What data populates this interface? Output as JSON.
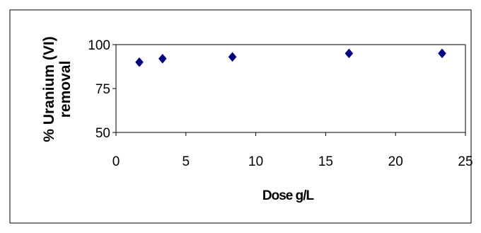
{
  "chart_data": {
    "type": "scatter",
    "title": "",
    "xlabel": "Dose g/L",
    "ylabel_lines": [
      "% Uranium (VI)",
      "removal"
    ],
    "xlim": [
      0,
      25
    ],
    "ylim": [
      50,
      100
    ],
    "x_ticks": [
      "0",
      "5",
      "10",
      "15",
      "20",
      "25"
    ],
    "y_ticks": [
      "50",
      "75",
      "100"
    ],
    "grid": false,
    "legend": "none",
    "marker": "diamond",
    "marker_color": "#000080",
    "points": [
      {
        "x": 1.67,
        "y": 90
      },
      {
        "x": 3.33,
        "y": 92
      },
      {
        "x": 8.33,
        "y": 93
      },
      {
        "x": 16.67,
        "y": 95
      },
      {
        "x": 23.33,
        "y": 95
      }
    ]
  }
}
